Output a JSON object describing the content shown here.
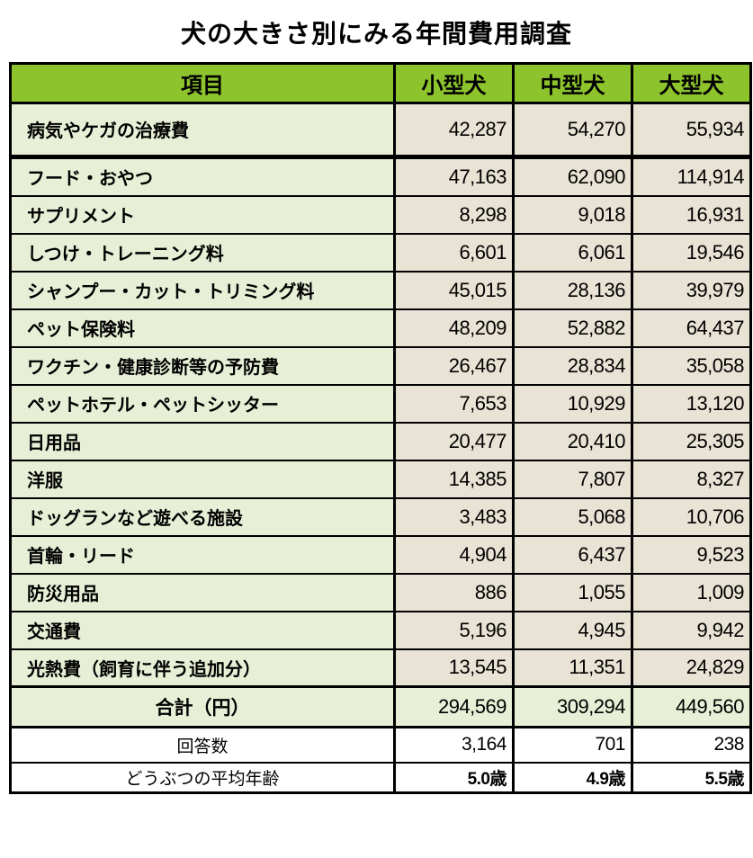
{
  "title": "犬の大きさ別にみる年間費用調査",
  "table": {
    "headers": [
      "項目",
      "小型犬",
      "中型犬",
      "大型犬"
    ],
    "rows": [
      {
        "label": "病気やケガの治療費",
        "small": "42,287",
        "medium": "54,270",
        "large": "55,934"
      },
      {
        "label": "フード・おやつ",
        "small": "47,163",
        "medium": "62,090",
        "large": "114,914"
      },
      {
        "label": "サプリメント",
        "small": "8,298",
        "medium": "9,018",
        "large": "16,931"
      },
      {
        "label": "しつけ・トレーニング料",
        "small": "6,601",
        "medium": "6,061",
        "large": "19,546"
      },
      {
        "label": "シャンプー・カット・トリミング料",
        "small": "45,015",
        "medium": "28,136",
        "large": "39,979"
      },
      {
        "label": "ペット保険料",
        "small": "48,209",
        "medium": "52,882",
        "large": "64,437"
      },
      {
        "label": "ワクチン・健康診断等の予防費",
        "small": "26,467",
        "medium": "28,834",
        "large": "35,058"
      },
      {
        "label": "ペットホテル・ペットシッター",
        "small": "7,653",
        "medium": "10,929",
        "large": "13,120"
      },
      {
        "label": "日用品",
        "small": "20,477",
        "medium": "20,410",
        "large": "25,305"
      },
      {
        "label": "洋服",
        "small": "14,385",
        "medium": "7,807",
        "large": "8,327"
      },
      {
        "label": "ドッグランなど遊べる施設",
        "small": "3,483",
        "medium": "5,068",
        "large": "10,706"
      },
      {
        "label": "首輪・リード",
        "small": "4,904",
        "medium": "6,437",
        "large": "9,523"
      },
      {
        "label": "防災用品",
        "small": "886",
        "medium": "1,055",
        "large": "1,009"
      },
      {
        "label": "交通費",
        "small": "5,196",
        "medium": "4,945",
        "large": "9,942"
      },
      {
        "label": "光熱費（飼育に伴う追加分）",
        "small": "13,545",
        "medium": "11,351",
        "large": "24,829"
      }
    ],
    "total": {
      "label": "合計（円）",
      "small": "294,569",
      "medium": "309,294",
      "large": "449,560"
    },
    "footer": {
      "respondents": {
        "label": "回答数",
        "small": "3,164",
        "medium": "701",
        "large": "238"
      },
      "average_age": {
        "label": "どうぶつの平均年齢",
        "small": "5.0歳",
        "medium": "4.9歳",
        "large": "5.5歳"
      }
    }
  },
  "colors": {
    "header_green": "#8DC32C",
    "item_green": "#E7EFD6",
    "value_beige": "#E9E3D5",
    "border": "#000000",
    "page_background": "#FFFFFF",
    "text": "#000000"
  },
  "chart_data": {
    "type": "table",
    "title": "犬の大きさ別にみる年間費用調査",
    "columns": [
      "項目",
      "小型犬",
      "中型犬",
      "大型犬"
    ],
    "unit": "円 (annual)",
    "rows": [
      {
        "item": "病気やケガの治療費",
        "small": 42287,
        "medium": 54270,
        "large": 55934
      },
      {
        "item": "フード・おやつ",
        "small": 47163,
        "medium": 62090,
        "large": 114914
      },
      {
        "item": "サプリメント",
        "small": 8298,
        "medium": 9018,
        "large": 16931
      },
      {
        "item": "しつけ・トレーニング料",
        "small": 6601,
        "medium": 6061,
        "large": 19546
      },
      {
        "item": "シャンプー・カット・トリミング料",
        "small": 45015,
        "medium": 28136,
        "large": 39979
      },
      {
        "item": "ペット保険料",
        "small": 48209,
        "medium": 52882,
        "large": 64437
      },
      {
        "item": "ワクチン・健康診断等の予防費",
        "small": 26467,
        "medium": 28834,
        "large": 35058
      },
      {
        "item": "ペットホテル・ペットシッター",
        "small": 7653,
        "medium": 10929,
        "large": 13120
      },
      {
        "item": "日用品",
        "small": 20477,
        "medium": 20410,
        "large": 25305
      },
      {
        "item": "洋服",
        "small": 14385,
        "medium": 7807,
        "large": 8327
      },
      {
        "item": "ドッグランなど遊べる施設",
        "small": 3483,
        "medium": 5068,
        "large": 10706
      },
      {
        "item": "首輪・リード",
        "small": 4904,
        "medium": 6437,
        "large": 9523
      },
      {
        "item": "防災用品",
        "small": 886,
        "medium": 1055,
        "large": 1009
      },
      {
        "item": "交通費",
        "small": 5196,
        "medium": 4945,
        "large": 9942
      },
      {
        "item": "光熱費（飼育に伴う追加分）",
        "small": 13545,
        "medium": 11351,
        "large": 24829
      }
    ],
    "total_yen": {
      "small": 294569,
      "medium": 309294,
      "large": 449560
    },
    "respondents": {
      "small": 3164,
      "medium": 701,
      "large": 238
    },
    "average_age_years": {
      "small": 5.0,
      "medium": 4.9,
      "large": 5.5
    }
  }
}
